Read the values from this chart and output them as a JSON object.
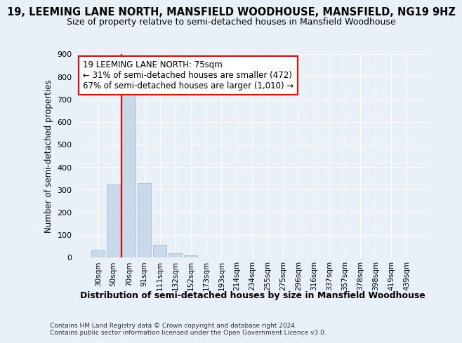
{
  "title": "19, LEEMING LANE NORTH, MANSFIELD WOODHOUSE, MANSFIELD, NG19 9HZ",
  "subtitle": "Size of property relative to semi-detached houses in Mansfield Woodhouse",
  "xlabel_bottom": "Distribution of semi-detached houses by size in Mansfield Woodhouse",
  "ylabel": "Number of semi-detached properties",
  "footer": "Contains HM Land Registry data © Crown copyright and database right 2024.\nContains public sector information licensed under the Open Government Licence v3.0.",
  "categories": [
    "30sqm",
    "50sqm",
    "70sqm",
    "91sqm",
    "111sqm",
    "132sqm",
    "152sqm",
    "173sqm",
    "193sqm",
    "214sqm",
    "234sqm",
    "255sqm",
    "275sqm",
    "296sqm",
    "316sqm",
    "337sqm",
    "357sqm",
    "378sqm",
    "398sqm",
    "419sqm",
    "439sqm"
  ],
  "values": [
    33,
    322,
    742,
    330,
    57,
    20,
    10,
    0,
    0,
    0,
    0,
    0,
    0,
    0,
    0,
    0,
    0,
    0,
    0,
    0,
    0
  ],
  "bar_color": "#c9d9ea",
  "bar_edge_color": "#a8c0d8",
  "red_line_x": 1.5,
  "annotation_text": "19 LEEMING LANE NORTH: 75sqm\n← 31% of semi-detached houses are smaller (472)\n67% of semi-detached houses are larger (1,010) →",
  "ylim": [
    0,
    900
  ],
  "yticks": [
    0,
    100,
    200,
    300,
    400,
    500,
    600,
    700,
    800,
    900
  ],
  "bg_color": "#eaf0f8",
  "plot_bg_color": "#eaf0f8",
  "grid_color": "#ffffff",
  "title_fontsize": 10.5,
  "subtitle_fontsize": 9
}
